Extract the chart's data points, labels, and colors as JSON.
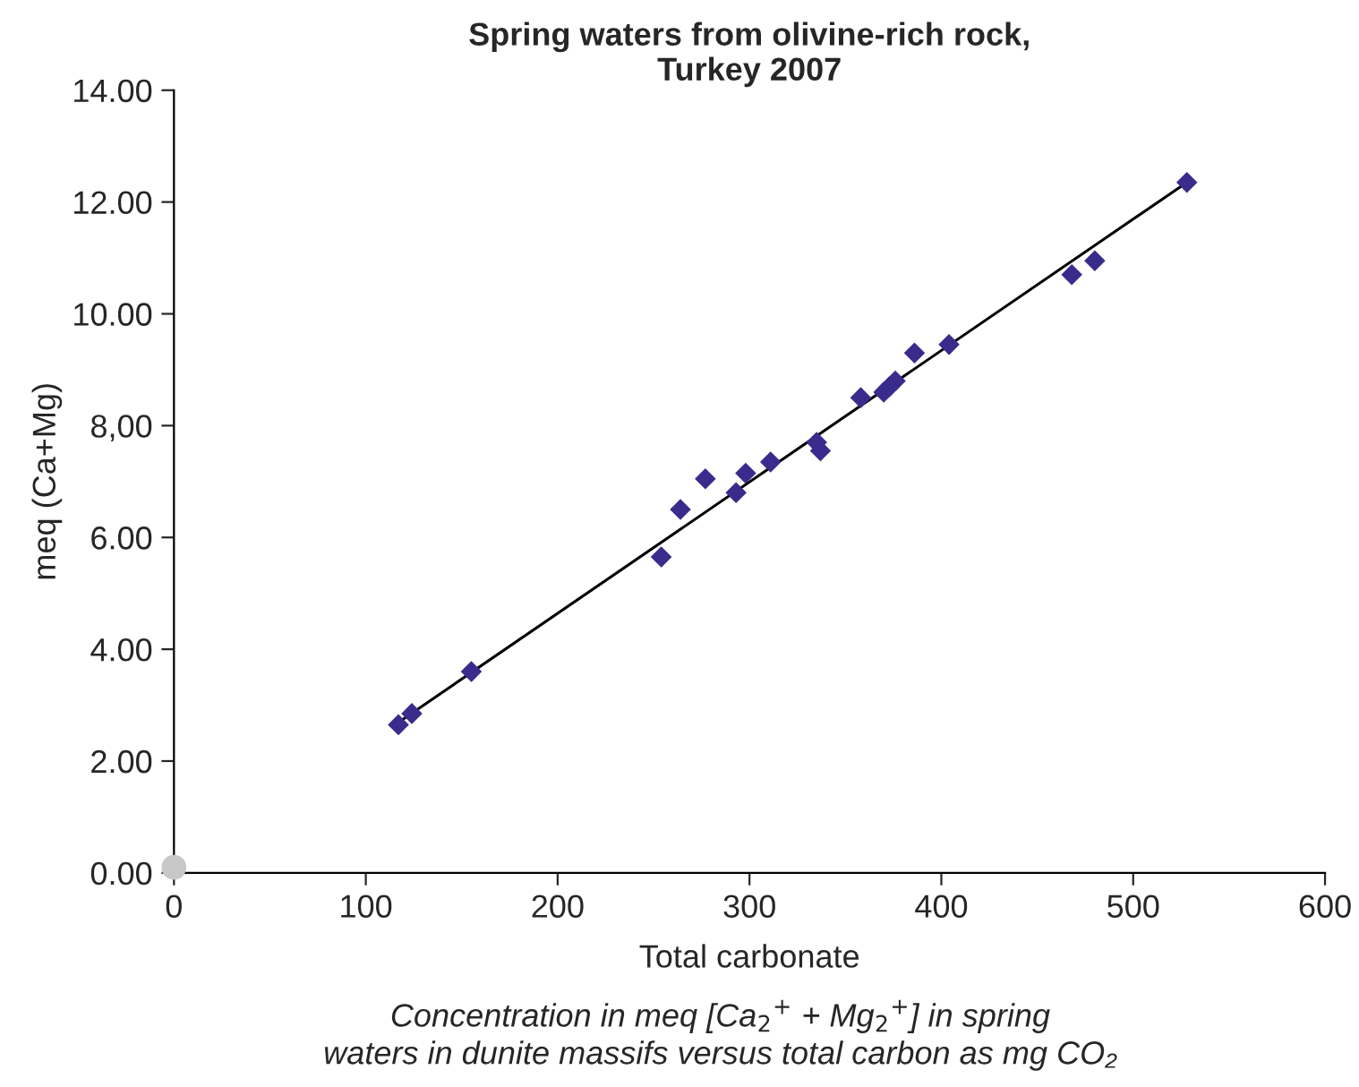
{
  "chart_data": {
    "type": "scatter",
    "title": "Spring waters from olivine-rich rock,\nTurkey 2007",
    "xlabel": "Total carbonate",
    "ylabel": "meq (Ca+Mg)",
    "annotations": [
      "Concentration in meq [Ca$_{2}$$^{+}$ + Mg$_{2}$$^{+}$] in spring\nwaters in dunite massifs versus total carbon as mg CO₂"
    ],
    "series": [
      {
        "color": "#3a2c8c",
        "marker": "diamond",
        "x": [
          117,
          124,
          155,
          254,
          264,
          277,
          293,
          298,
          311,
          335,
          337,
          358,
          370,
          373,
          376,
          386,
          404,
          468,
          480,
          528
        ],
        "values": [
          2.65,
          2.85,
          3.6,
          5.65,
          6.5,
          7.05,
          6.8,
          7.15,
          7.35,
          7.7,
          7.55,
          8.5,
          8.6,
          8.7,
          8.8,
          9.3,
          9.45,
          10.7,
          10.95,
          12.35
        ]
      },
      {
        "type": "line",
        "color": "#000000",
        "marker": "none",
        "x": [
          114,
          530
        ],
        "values": [
          2.62,
          12.4
        ]
      },
      {
        "color": "#c8c8c8",
        "marker": "circle",
        "x": [
          0
        ],
        "values": [
          0.1
        ]
      }
    ],
    "xlim": [
      0,
      600
    ],
    "xticks": [
      0,
      100,
      200,
      300,
      400,
      500,
      600
    ],
    "ylim": [
      0,
      14
    ],
    "yticks": [
      {
        "value": 0,
        "label": "0.00"
      },
      {
        "value": 2,
        "label": "2.00"
      },
      {
        "value": 4,
        "label": "4.00"
      },
      {
        "value": 6,
        "label": "6.00"
      },
      {
        "value": 8,
        "label": "8,00"
      },
      {
        "value": 10,
        "label": "10.00"
      },
      {
        "value": 12,
        "label": "12.00"
      },
      {
        "value": 14,
        "label": "14.00"
      }
    ],
    "grid": false,
    "legend": false
  }
}
